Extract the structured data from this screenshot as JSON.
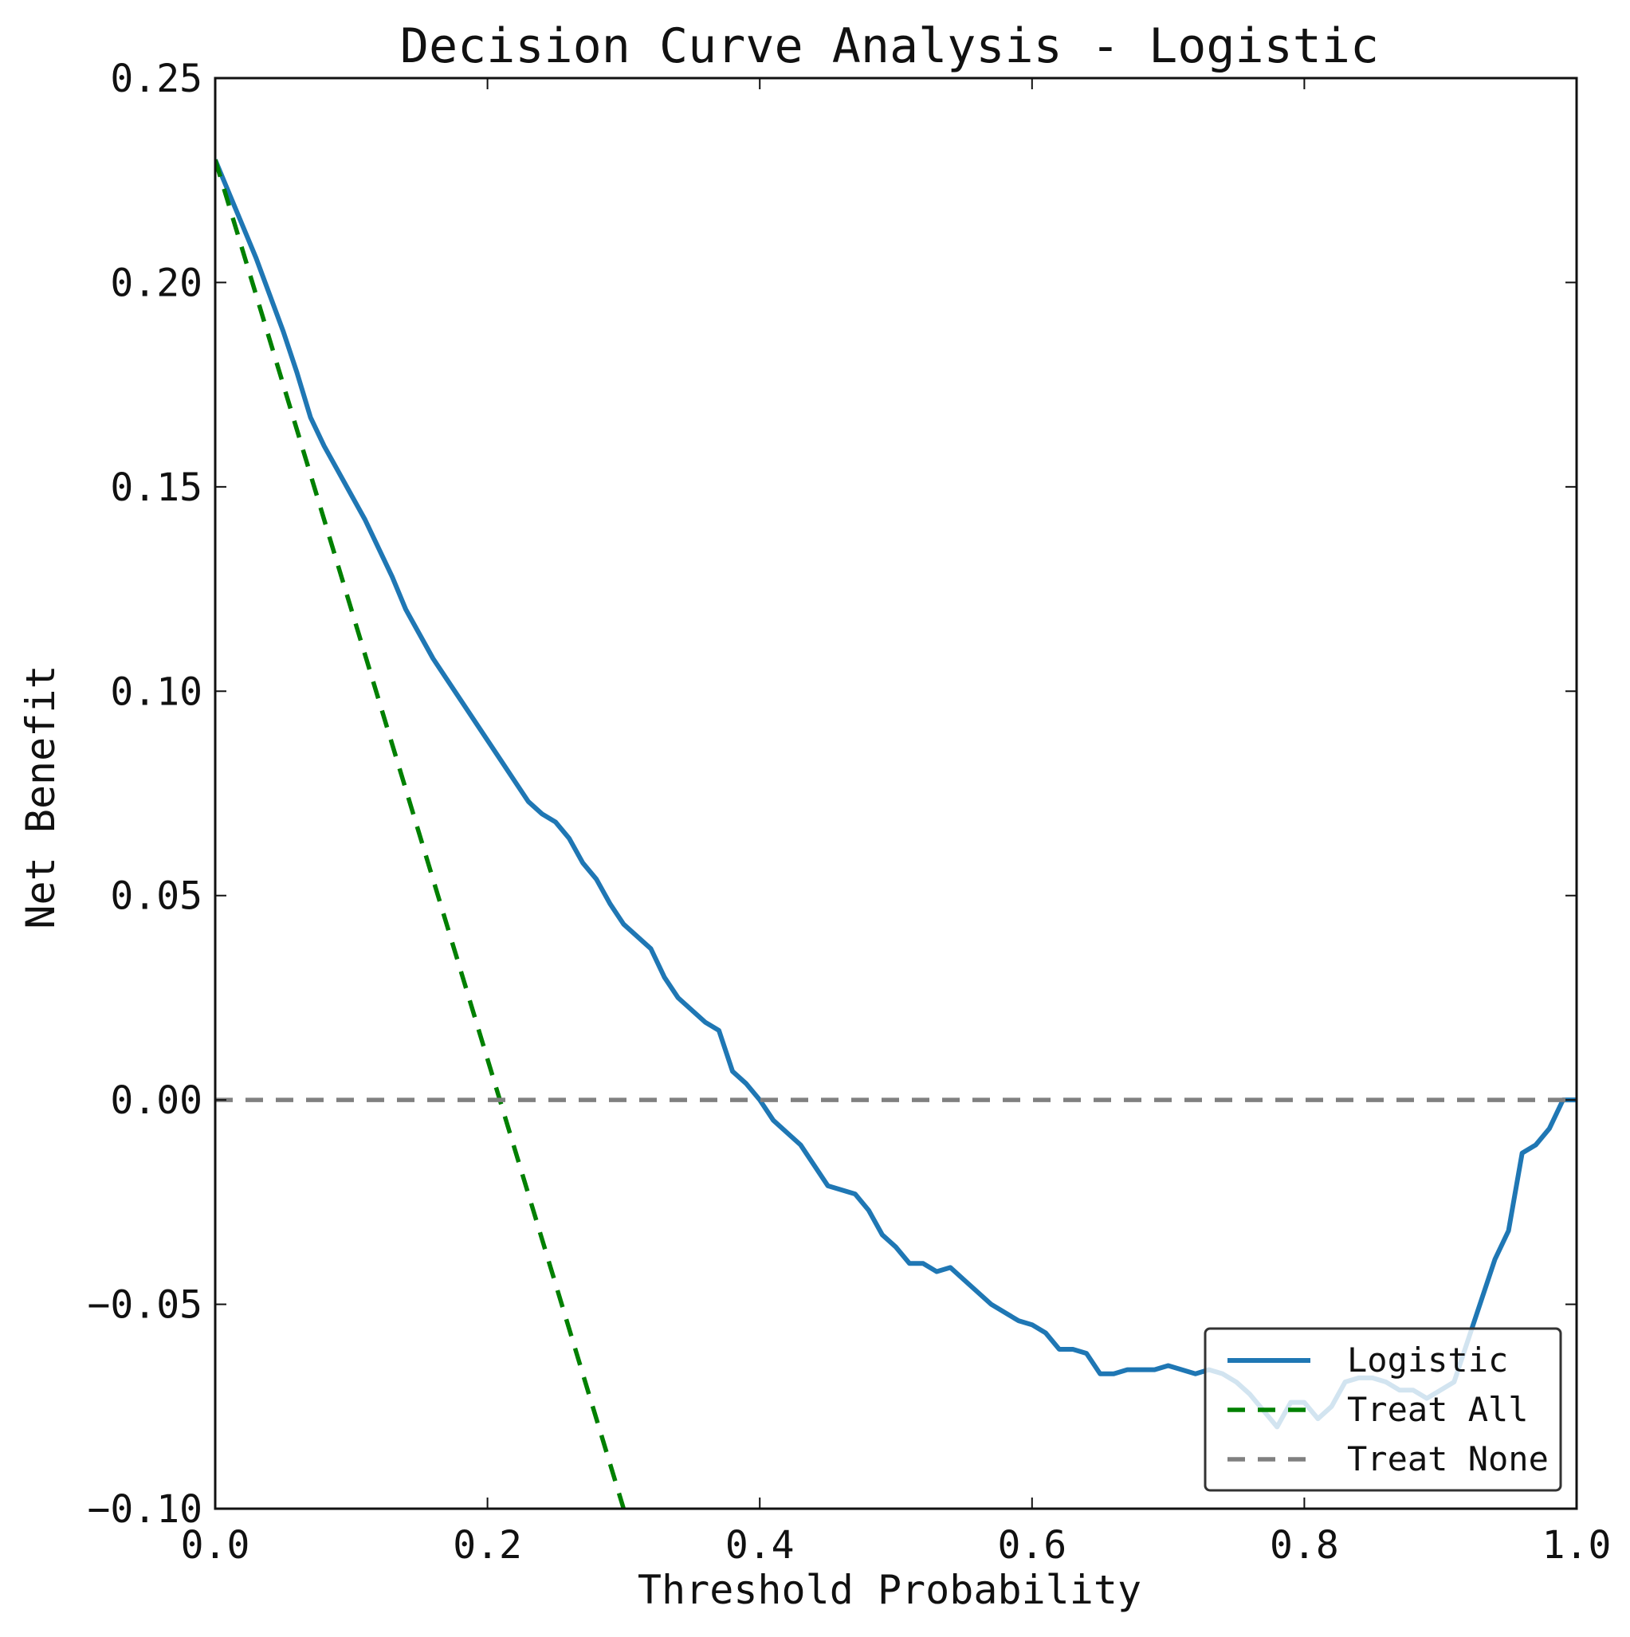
{
  "chart_data": {
    "type": "line",
    "title": "Decision Curve Analysis - Logistic",
    "xlabel": "Threshold Probability",
    "ylabel": "Net Benefit",
    "xlim": [
      0.0,
      1.0
    ],
    "ylim": [
      -0.1,
      0.25
    ],
    "xticks": [
      "0.0",
      "0.2",
      "0.4",
      "0.6",
      "0.8",
      "1.0"
    ],
    "xtick_values": [
      0.0,
      0.2,
      0.4,
      0.6,
      0.8,
      1.0
    ],
    "yticks": [
      "0.25",
      "0.20",
      "0.15",
      "0.10",
      "0.05",
      "0.00",
      "−0.05",
      "−0.10"
    ],
    "ytick_values": [
      0.25,
      0.2,
      0.15,
      0.1,
      0.05,
      0.0,
      -0.05,
      -0.1
    ],
    "grid": false,
    "legend_position": "lower-right",
    "series": [
      {
        "name": "Logistic",
        "color": "#1f77b4",
        "style": "solid",
        "x": [
          0.0,
          0.01,
          0.02,
          0.03,
          0.04,
          0.05,
          0.06,
          0.07,
          0.08,
          0.09,
          0.1,
          0.11,
          0.12,
          0.13,
          0.14,
          0.15,
          0.16,
          0.17,
          0.18,
          0.19,
          0.2,
          0.21,
          0.22,
          0.23,
          0.24,
          0.25,
          0.26,
          0.27,
          0.28,
          0.29,
          0.3,
          0.31,
          0.32,
          0.33,
          0.34,
          0.35,
          0.36,
          0.37,
          0.38,
          0.39,
          0.4,
          0.41,
          0.42,
          0.43,
          0.44,
          0.45,
          0.46,
          0.47,
          0.48,
          0.49,
          0.5,
          0.51,
          0.52,
          0.53,
          0.54,
          0.55,
          0.56,
          0.57,
          0.58,
          0.59,
          0.6,
          0.61,
          0.62,
          0.63,
          0.64,
          0.65,
          0.66,
          0.67,
          0.68,
          0.69,
          0.7,
          0.71,
          0.72,
          0.73,
          0.74,
          0.75,
          0.76,
          0.77,
          0.78,
          0.79,
          0.8,
          0.81,
          0.82,
          0.83,
          0.84,
          0.85,
          0.86,
          0.87,
          0.88,
          0.89,
          0.9,
          0.91,
          0.92,
          0.93,
          0.94,
          0.95,
          0.96,
          0.97,
          0.98,
          0.99,
          1.0
        ],
        "values": [
          0.23,
          0.222,
          0.214,
          0.206,
          0.197,
          0.188,
          0.178,
          0.167,
          0.16,
          0.154,
          0.148,
          0.142,
          0.135,
          0.128,
          0.12,
          0.114,
          0.108,
          0.103,
          0.098,
          0.093,
          0.088,
          0.083,
          0.078,
          0.073,
          0.07,
          0.068,
          0.064,
          0.058,
          0.054,
          0.048,
          0.043,
          0.04,
          0.037,
          0.03,
          0.025,
          0.022,
          0.019,
          0.017,
          0.007,
          0.004,
          0.0,
          -0.005,
          -0.008,
          -0.011,
          -0.016,
          -0.021,
          -0.022,
          -0.023,
          -0.027,
          -0.033,
          -0.036,
          -0.04,
          -0.04,
          -0.042,
          -0.041,
          -0.044,
          -0.047,
          -0.05,
          -0.052,
          -0.054,
          -0.055,
          -0.057,
          -0.061,
          -0.061,
          -0.062,
          -0.067,
          -0.067,
          -0.066,
          -0.066,
          -0.066,
          -0.065,
          -0.066,
          -0.067,
          -0.066,
          -0.067,
          -0.069,
          -0.072,
          -0.076,
          -0.08,
          -0.074,
          -0.074,
          -0.078,
          -0.075,
          -0.069,
          -0.068,
          -0.068,
          -0.069,
          -0.071,
          -0.071,
          -0.073,
          -0.071,
          -0.069,
          -0.059,
          -0.049,
          -0.039,
          -0.032,
          -0.013,
          -0.011,
          -0.007,
          0.0,
          0.0
        ]
      },
      {
        "name": "Treat All",
        "color": "#008000",
        "style": "dashed",
        "x": [
          0.0,
          0.3
        ],
        "values": [
          0.23,
          -0.1
        ]
      },
      {
        "name": "Treat None",
        "color": "#808080",
        "style": "dashed",
        "x": [
          0.0,
          1.0
        ],
        "values": [
          0.0,
          0.0
        ]
      }
    ]
  }
}
